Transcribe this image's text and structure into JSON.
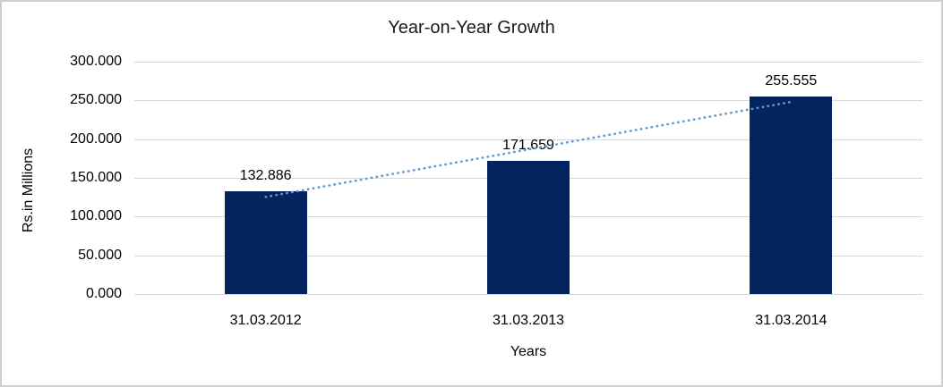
{
  "chart_data": {
    "type": "bar",
    "title": "Year-on-Year Growth",
    "xlabel": "Years",
    "ylabel": "Rs.in Millions",
    "categories": [
      "31.03.2012",
      "31.03.2013",
      "31.03.2014"
    ],
    "values": [
      132.886,
      171.659,
      255.555
    ],
    "data_labels": [
      "132.886",
      "171.659",
      "255.555"
    ],
    "ylim": [
      0,
      300
    ],
    "y_ticks": [
      {
        "value": 0,
        "label": "0.000"
      },
      {
        "value": 50,
        "label": "50.000"
      },
      {
        "value": 100,
        "label": "100.000"
      },
      {
        "value": 150,
        "label": "150.000"
      },
      {
        "value": 200,
        "label": "200.000"
      },
      {
        "value": 250,
        "label": "250.000"
      },
      {
        "value": 300,
        "label": "300.000"
      }
    ],
    "grid": true,
    "legend": "none",
    "trendline": {
      "type": "linear",
      "style": "dotted"
    },
    "colors": {
      "bar": "#04245f",
      "trendline": "#5b9bd5",
      "gridline": "#d9d9d9",
      "text": "#000000",
      "frame_border": "#cfcfcf"
    }
  }
}
